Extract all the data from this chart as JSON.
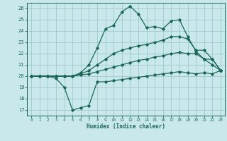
{
  "xlabel": "Humidex (Indice chaleur)",
  "background_color": "#c8e8ec",
  "grid_color": "#a0c8cc",
  "line_color": "#1a6655",
  "xlim": [
    -0.5,
    23.5
  ],
  "ylim": [
    16.5,
    26.5
  ],
  "xticks": [
    0,
    1,
    2,
    3,
    4,
    5,
    6,
    7,
    8,
    9,
    10,
    11,
    12,
    13,
    14,
    15,
    16,
    17,
    18,
    19,
    20,
    21,
    22,
    23
  ],
  "yticks": [
    17,
    18,
    19,
    20,
    21,
    22,
    23,
    24,
    25,
    26
  ],
  "series": [
    {
      "x": [
        0,
        1,
        2,
        3,
        4,
        5,
        6,
        7,
        8,
        9,
        10,
        11,
        12,
        13,
        14,
        15,
        16,
        17,
        18,
        19,
        20,
        21,
        22,
        23
      ],
      "y": [
        20,
        20,
        20,
        19.8,
        19.0,
        17.0,
        17.2,
        17.4,
        19.5,
        19.5,
        19.6,
        19.7,
        19.8,
        19.9,
        20.0,
        20.1,
        20.2,
        20.3,
        20.4,
        20.3,
        20.2,
        20.3,
        20.2,
        20.5
      ]
    },
    {
      "x": [
        0,
        1,
        2,
        3,
        4,
        5,
        6,
        7,
        8,
        9,
        10,
        11,
        12,
        13,
        14,
        15,
        16,
        17,
        18,
        19,
        20,
        21,
        22,
        23
      ],
      "y": [
        20,
        20,
        20,
        20,
        20,
        20,
        20.1,
        20.2,
        20.4,
        20.6,
        20.8,
        21.0,
        21.2,
        21.4,
        21.5,
        21.7,
        21.8,
        22.0,
        22.1,
        22.0,
        22.0,
        21.5,
        21.5,
        20.5
      ]
    },
    {
      "x": [
        0,
        1,
        2,
        3,
        4,
        5,
        6,
        7,
        8,
        9,
        10,
        11,
        12,
        13,
        14,
        15,
        16,
        17,
        18,
        19,
        20,
        21,
        22,
        23
      ],
      "y": [
        20,
        20,
        20,
        20,
        20,
        20,
        20.2,
        20.5,
        21.0,
        21.5,
        22.0,
        22.3,
        22.5,
        22.7,
        22.8,
        23.0,
        23.2,
        23.5,
        23.5,
        23.3,
        22.3,
        22.3,
        21.5,
        20.5
      ]
    },
    {
      "x": [
        0,
        1,
        2,
        3,
        4,
        5,
        6,
        7,
        8,
        9,
        10,
        11,
        12,
        13,
        14,
        15,
        16,
        17,
        18,
        19,
        20,
        21,
        22,
        23
      ],
      "y": [
        20,
        20,
        20,
        20,
        20,
        20,
        20.3,
        21.0,
        22.5,
        24.2,
        24.5,
        25.7,
        26.2,
        25.5,
        24.3,
        24.4,
        24.2,
        24.9,
        25.0,
        23.5,
        22.2,
        21.5,
        21.0,
        20.5
      ]
    }
  ]
}
